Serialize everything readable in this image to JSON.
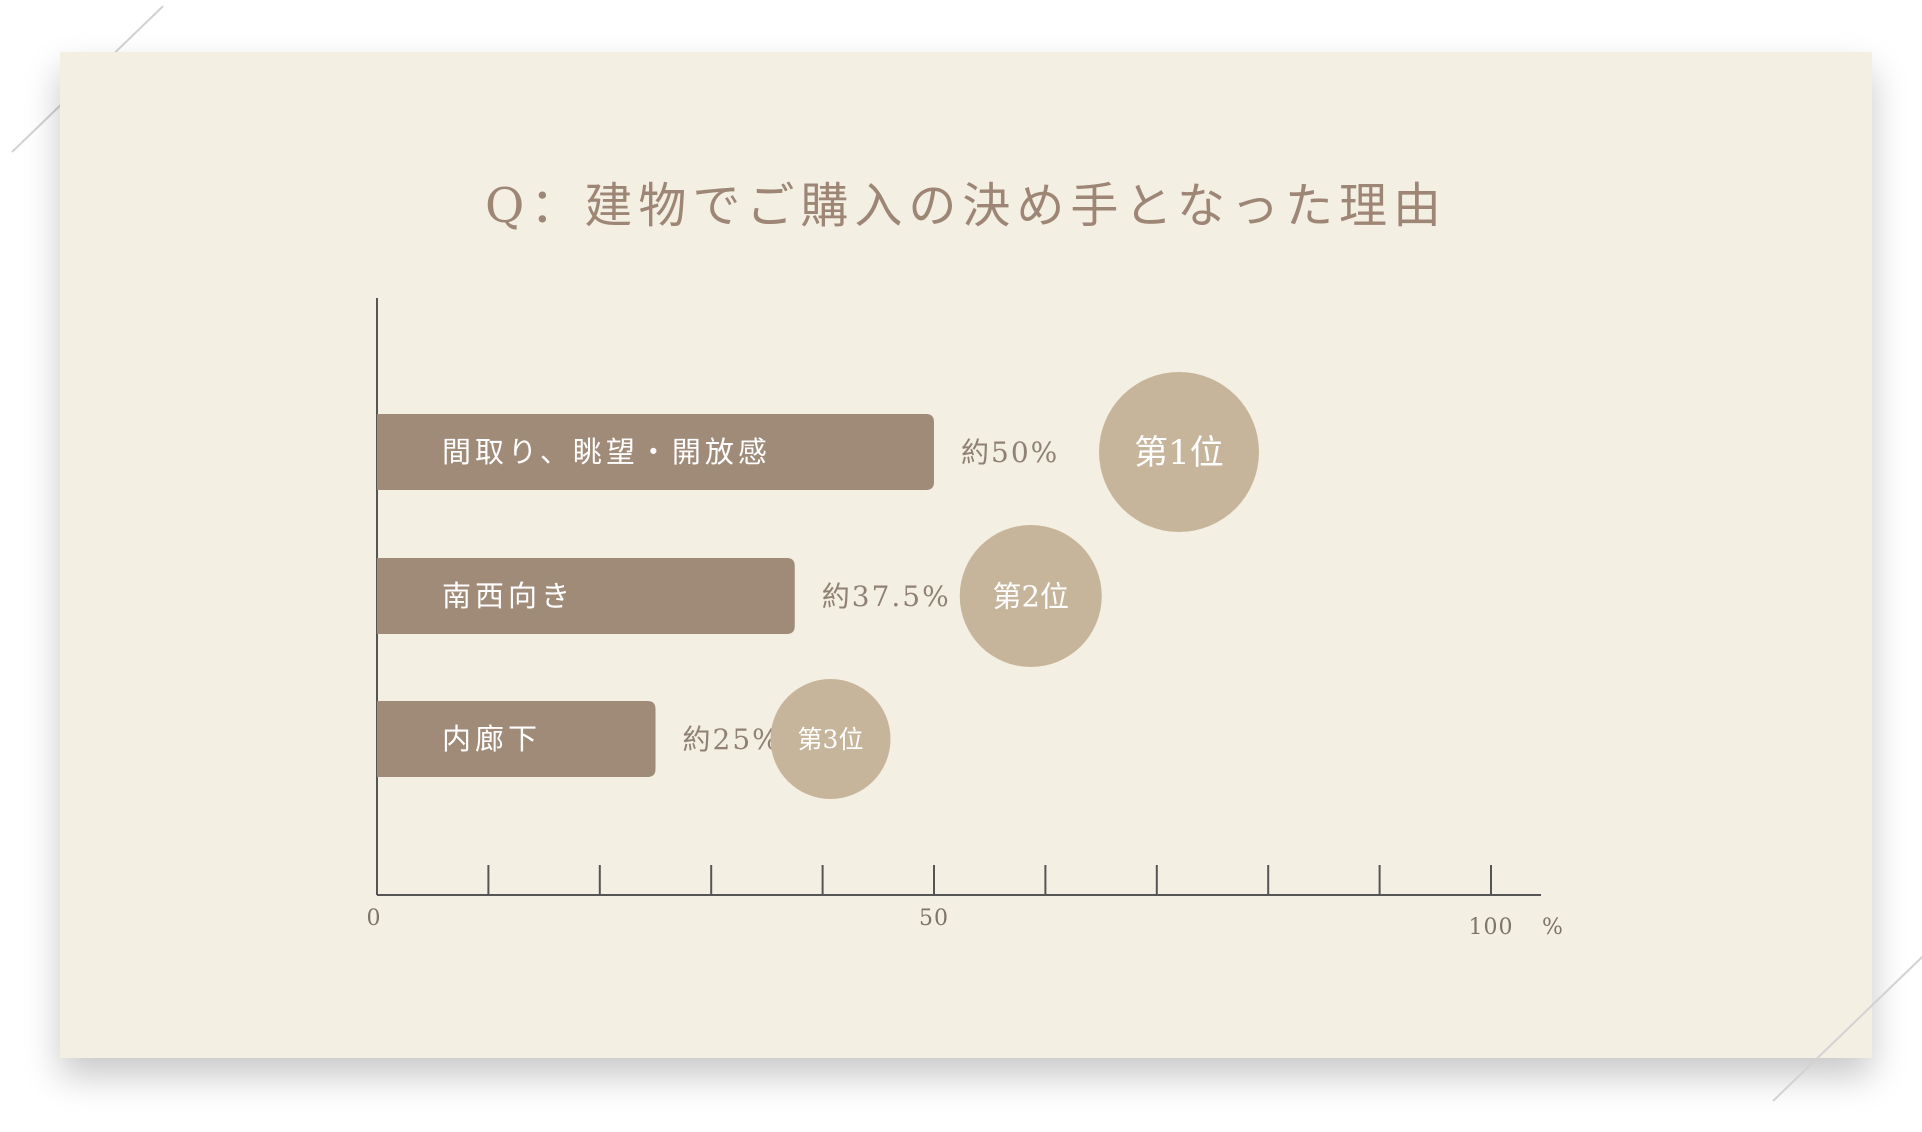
{
  "title": "Q：建物でご購入の決め手となった理由",
  "colors": {
    "background": "#f3efe2",
    "bar": "#a08a78",
    "badge": "#c6b59b",
    "axis": "#555555",
    "title": "#9e8676"
  },
  "chart_data": {
    "type": "bar",
    "orientation": "horizontal",
    "title": "Q：建物でご購入の決め手となった理由",
    "categories": [
      "間取り、眺望・開放感",
      "南西向き",
      "内廊下"
    ],
    "values": [
      50,
      37.5,
      25
    ],
    "value_labels": [
      "約50%",
      "約37.5%",
      "約25%"
    ],
    "ranks": [
      "第1位",
      "第2位",
      "第3位"
    ],
    "xlim": [
      0,
      100
    ],
    "x_ticks": [
      0,
      10,
      20,
      30,
      40,
      50,
      60,
      70,
      80,
      90,
      100
    ],
    "x_tick_labels": [
      {
        "value": 0,
        "label": "0"
      },
      {
        "value": 50,
        "label": "50"
      },
      {
        "value": 100,
        "label": "100"
      }
    ],
    "x_unit": "%",
    "grid": false,
    "legend": "none"
  }
}
